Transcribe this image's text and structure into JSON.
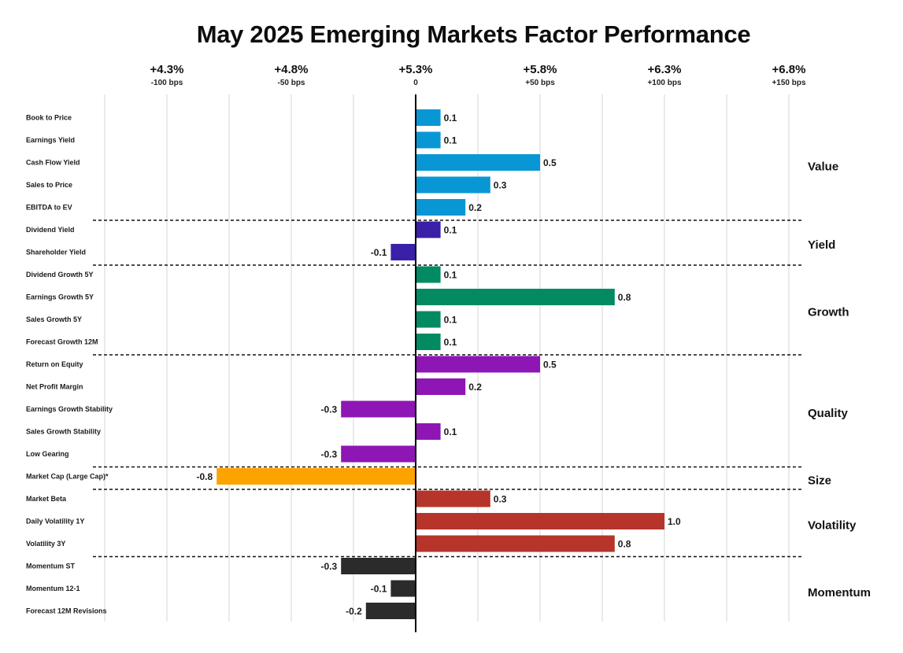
{
  "chart_data": {
    "type": "bar",
    "orientation": "horizontal",
    "title": "May 2025 Emerging Markets Factor Performance",
    "xlabel": "",
    "ylabel": "",
    "value_unit": "percentage points relative to benchmark",
    "xlim": [
      -1.25,
      1.5
    ],
    "grid": true,
    "top_axis_ticks": [
      {
        "value": -1.0,
        "label": "+4.3%",
        "sublabel": "-100 bps"
      },
      {
        "value": -0.5,
        "label": "+4.8%",
        "sublabel": "-50 bps"
      },
      {
        "value": 0.0,
        "label": "+5.3%",
        "sublabel": "0"
      },
      {
        "value": 0.5,
        "label": "+5.8%",
        "sublabel": "+50 bps"
      },
      {
        "value": 1.0,
        "label": "+6.3%",
        "sublabel": "+100 bps"
      },
      {
        "value": 1.5,
        "label": "+6.8%",
        "sublabel": "+150 bps"
      }
    ],
    "gridline_step": 0.25,
    "groups": [
      {
        "name": "Value",
        "color": "#0897d4",
        "items": [
          {
            "label": "Book to Price",
            "value": 0.1,
            "value_label": "0.1"
          },
          {
            "label": "Earnings Yield",
            "value": 0.1,
            "value_label": "0.1"
          },
          {
            "label": "Cash Flow Yield",
            "value": 0.5,
            "value_label": "0.5"
          },
          {
            "label": "Sales to Price",
            "value": 0.3,
            "value_label": "0.3"
          },
          {
            "label": "EBITDA to EV",
            "value": 0.2,
            "value_label": "0.2"
          }
        ]
      },
      {
        "name": "Yield",
        "color": "#3a1fa8",
        "items": [
          {
            "label": "Dividend Yield",
            "value": 0.1,
            "value_label": "0.1"
          },
          {
            "label": "Shareholder Yield",
            "value": -0.1,
            "value_label": "-0.1"
          }
        ]
      },
      {
        "name": "Growth",
        "color": "#028a63",
        "items": [
          {
            "label": "Dividend Growth 5Y",
            "value": 0.1,
            "value_label": "0.1"
          },
          {
            "label": "Earnings Growth 5Y",
            "value": 0.8,
            "value_label": "0.8"
          },
          {
            "label": "Sales Growth 5Y",
            "value": 0.1,
            "value_label": "0.1"
          },
          {
            "label": "Forecast Growth 12M",
            "value": 0.1,
            "value_label": "0.1"
          }
        ]
      },
      {
        "name": "Quality",
        "color": "#8e16b5",
        "items": [
          {
            "label": "Return on Equity",
            "value": 0.5,
            "value_label": "0.5"
          },
          {
            "label": "Net Profit Margin",
            "value": 0.2,
            "value_label": "0.2"
          },
          {
            "label": "Earnings Growth Stability",
            "value": -0.3,
            "value_label": "-0.3"
          },
          {
            "label": "Sales Growth Stability",
            "value": 0.1,
            "value_label": "0.1"
          },
          {
            "label": "Low Gearing",
            "value": -0.3,
            "value_label": "-0.3"
          }
        ]
      },
      {
        "name": "Size",
        "color": "#fda300",
        "items": [
          {
            "label": "Market Cap (Large Cap)*",
            "value": -0.8,
            "value_label": "-0.8"
          }
        ]
      },
      {
        "name": "Volatility",
        "color": "#b7342a",
        "items": [
          {
            "label": "Market Beta",
            "value": 0.3,
            "value_label": "0.3"
          },
          {
            "label": "Daily Volatility 1Y",
            "value": 1.0,
            "value_label": "1.0"
          },
          {
            "label": "Volatility 3Y",
            "value": 0.8,
            "value_label": "0.8"
          }
        ]
      },
      {
        "name": "Momentum",
        "color": "#2b2b2b",
        "items": [
          {
            "label": "Momentum ST",
            "value": -0.3,
            "value_label": "-0.3"
          },
          {
            "label": "Momentum 12-1",
            "value": -0.1,
            "value_label": "-0.1"
          },
          {
            "label": "Forecast 12M Revisions",
            "value": -0.2,
            "value_label": "-0.2"
          }
        ]
      }
    ]
  }
}
